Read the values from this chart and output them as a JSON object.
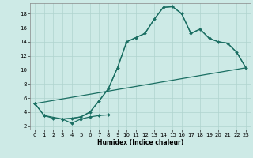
{
  "xlabel": "Humidex (Indice chaleur)",
  "xlim": [
    -0.5,
    23.5
  ],
  "ylim": [
    1.5,
    19.5
  ],
  "xticks": [
    0,
    1,
    2,
    3,
    4,
    5,
    6,
    7,
    8,
    9,
    10,
    11,
    12,
    13,
    14,
    15,
    16,
    17,
    18,
    19,
    20,
    21,
    22,
    23
  ],
  "yticks": [
    2,
    4,
    6,
    8,
    10,
    12,
    14,
    16,
    18
  ],
  "bg_color": "#cdeae6",
  "grid_color": "#b0d4ce",
  "line_color": "#1a6e62",
  "curves": [
    {
      "x": [
        0,
        1,
        2,
        3,
        4,
        5,
        6,
        7,
        8
      ],
      "y": [
        5.2,
        3.5,
        3.1,
        3.0,
        2.4,
        3.0,
        3.3,
        3.5,
        3.6
      ],
      "marker": true
    },
    {
      "x": [
        0,
        1,
        3,
        4,
        5,
        6,
        7,
        8,
        9,
        10,
        11,
        12,
        13,
        14,
        15,
        16,
        17,
        18,
        19,
        20,
        21,
        22,
        23
      ],
      "y": [
        5.2,
        3.5,
        3.0,
        3.1,
        3.3,
        4.0,
        5.6,
        7.3,
        10.3,
        14.0,
        14.6,
        15.2,
        17.2,
        18.9,
        19.0,
        18.0,
        15.2,
        15.8,
        14.5,
        14.0,
        13.8,
        12.5,
        10.3
      ],
      "marker": true
    },
    {
      "x": [
        0,
        23
      ],
      "y": [
        5.2,
        10.3
      ],
      "marker": false
    },
    {
      "x": [
        3,
        4,
        5,
        6,
        7,
        8,
        9,
        10,
        11,
        12,
        13,
        14,
        15,
        16,
        17,
        18,
        19,
        20,
        21,
        22,
        23
      ],
      "y": [
        3.0,
        3.1,
        3.3,
        4.0,
        5.6,
        7.3,
        10.3,
        14.0,
        14.6,
        15.2,
        17.2,
        18.9,
        19.0,
        18.0,
        15.2,
        15.8,
        14.5,
        14.0,
        13.8,
        12.5,
        10.3
      ],
      "marker": false
    }
  ],
  "lw": 0.9,
  "ms": 2.0
}
